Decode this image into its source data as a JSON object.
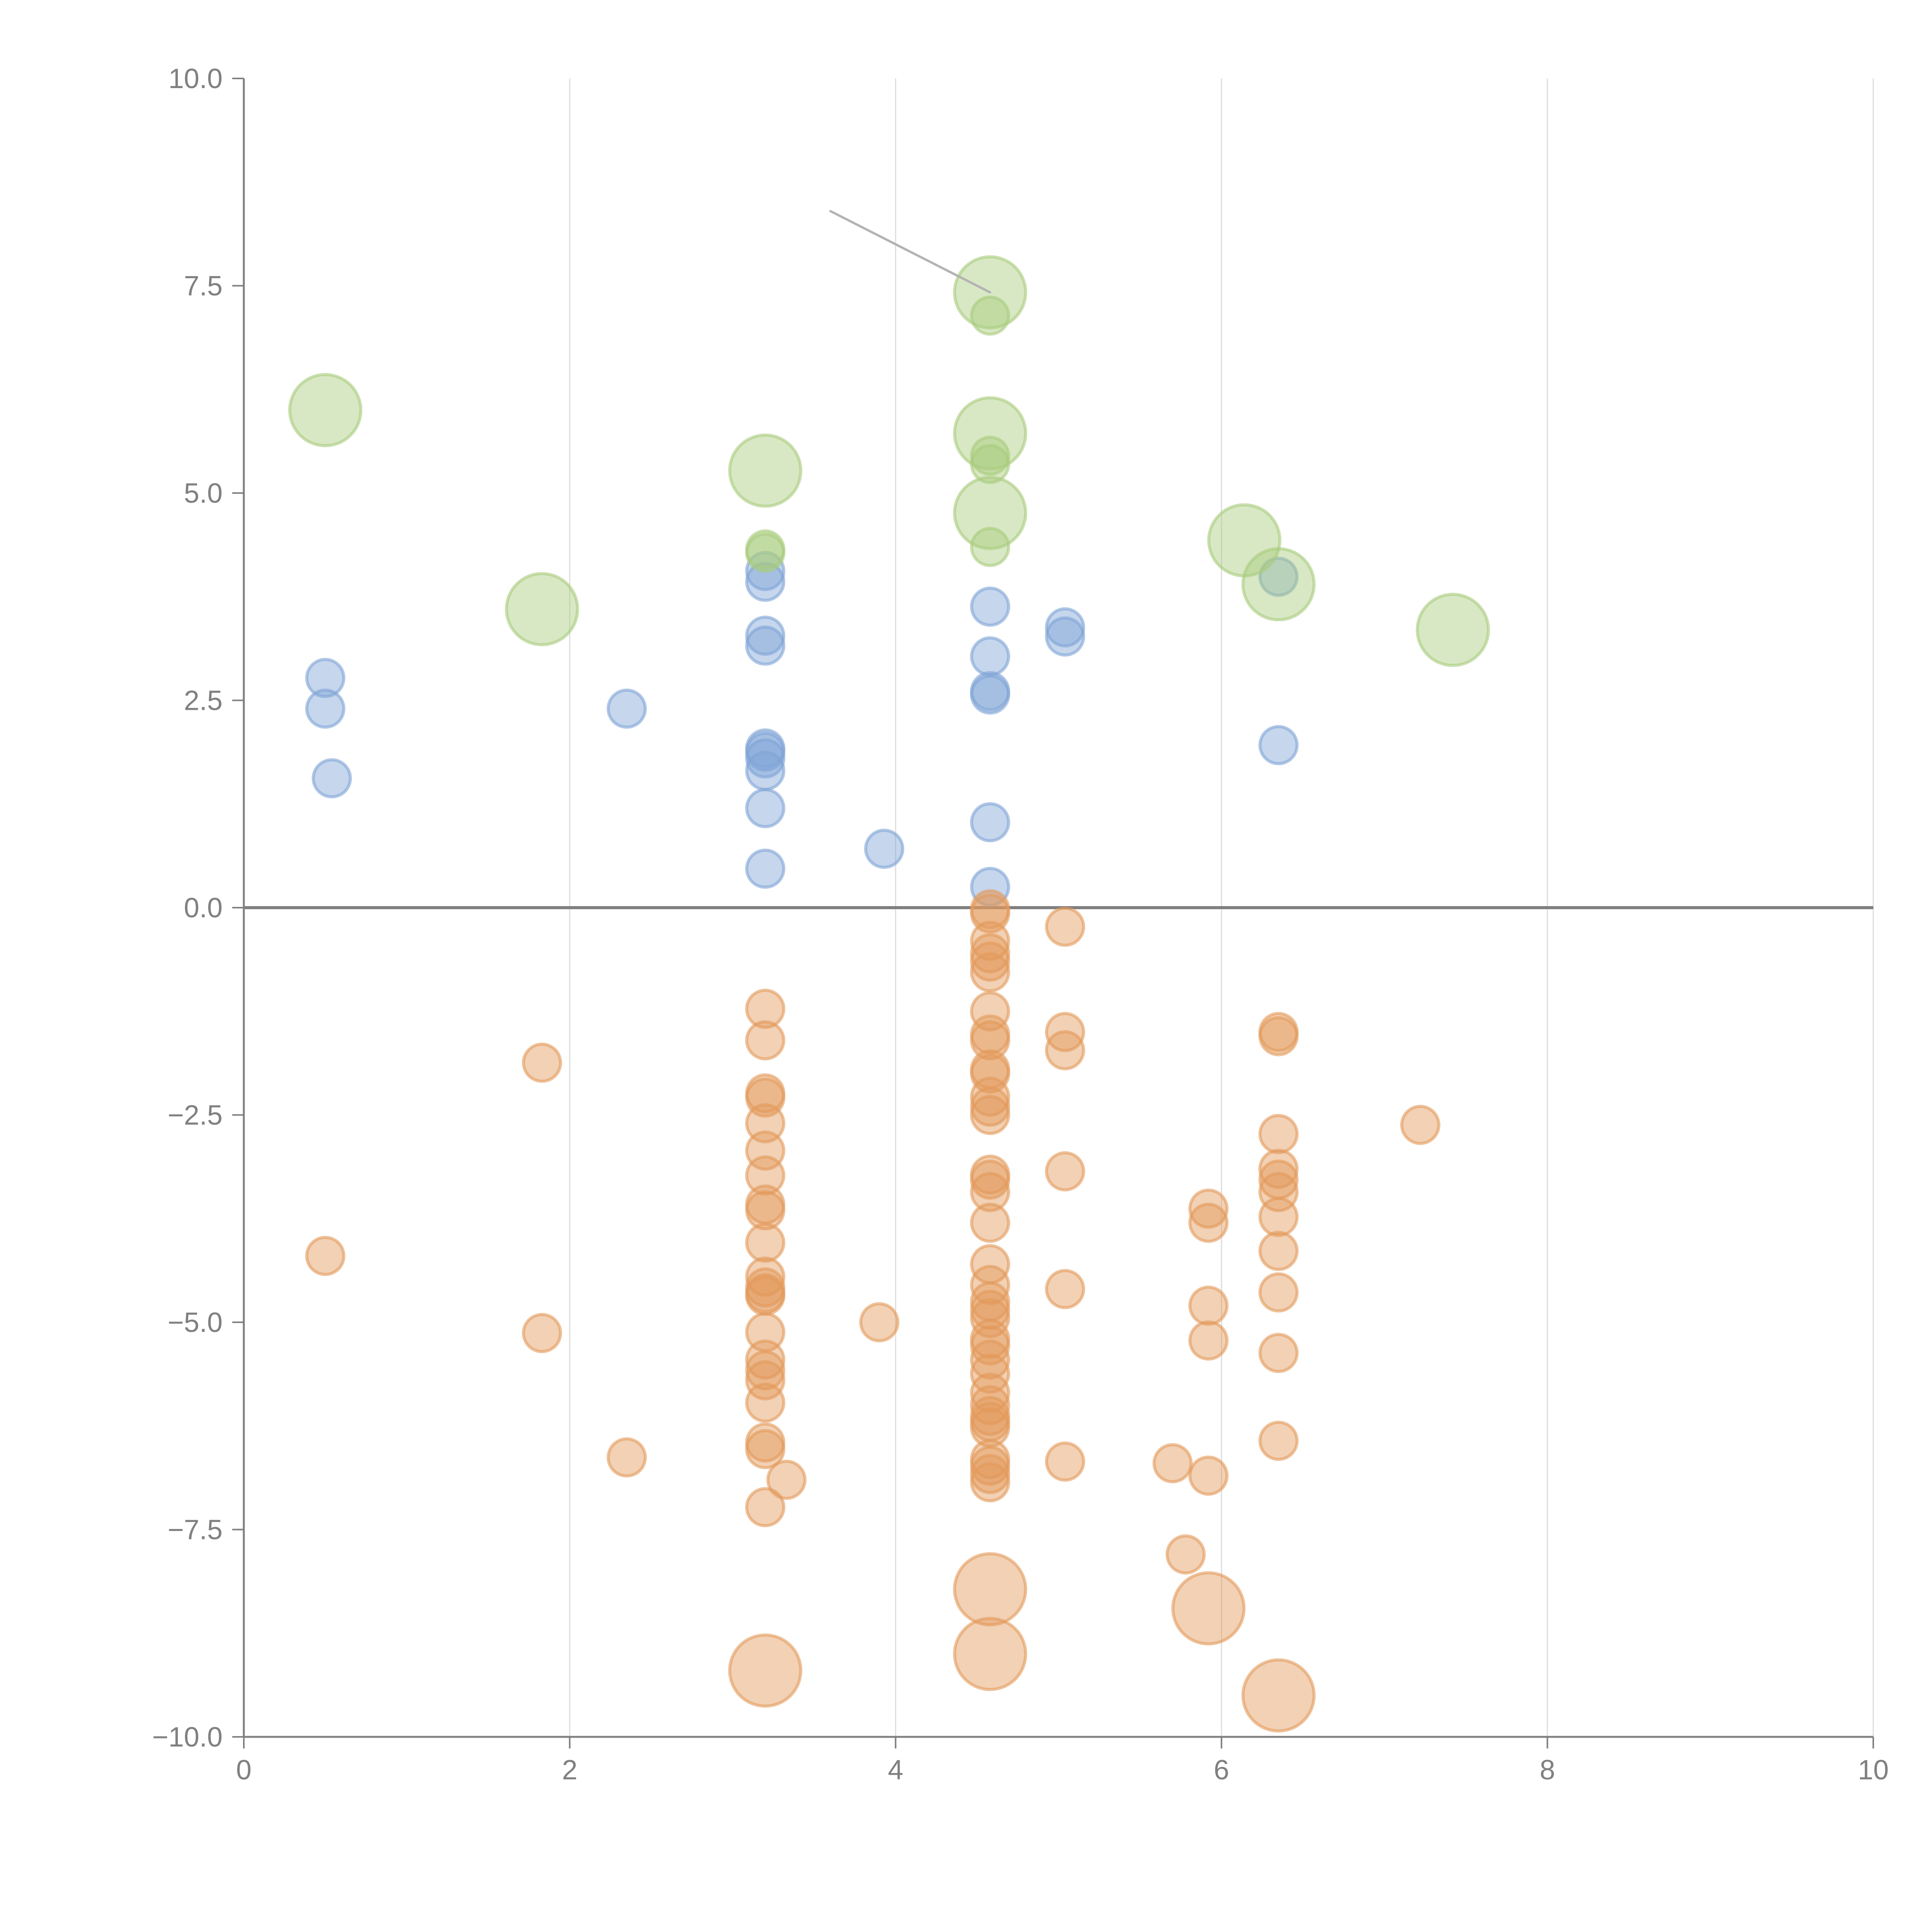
{
  "chart_data": {
    "type": "scatter",
    "title": "",
    "xlabel": "",
    "ylabel": "",
    "xlim": [
      0,
      10
    ],
    "ylim": [
      -10,
      10
    ],
    "x_ticks": [
      "0",
      "2",
      "4",
      "6",
      "8",
      "10"
    ],
    "y_ticks": [
      "10.0",
      "7.5",
      "5.0",
      "2.5",
      "0.0",
      "−2.5",
      "−5.0",
      "−7.5",
      "−10.0"
    ],
    "x_grid": true,
    "zero_line": true,
    "legend": "none",
    "colors": {
      "blue": "#7fa3d6",
      "green": "#a9cc7d",
      "orange": "#e39a5a"
    },
    "series": [
      {
        "name": "blue",
        "size": "small",
        "points": [
          [
            0.5,
            2.77
          ],
          [
            0.5,
            2.4
          ],
          [
            0.54,
            1.56
          ],
          [
            2.35,
            2.4
          ],
          [
            3.2,
            4.06
          ],
          [
            3.2,
            3.93
          ],
          [
            3.2,
            3.28
          ],
          [
            3.2,
            3.16
          ],
          [
            3.2,
            1.92
          ],
          [
            3.2,
            1.88
          ],
          [
            3.2,
            1.8
          ],
          [
            3.2,
            1.65
          ],
          [
            3.2,
            1.2
          ],
          [
            3.2,
            0.47
          ],
          [
            3.93,
            0.71
          ],
          [
            4.58,
            3.63
          ],
          [
            4.58,
            3.03
          ],
          [
            4.58,
            2.61
          ],
          [
            4.58,
            2.57
          ],
          [
            4.58,
            1.03
          ],
          [
            4.58,
            0.25
          ],
          [
            5.04,
            3.38
          ],
          [
            5.04,
            3.27
          ],
          [
            6.35,
            3.99
          ],
          [
            6.35,
            1.96
          ]
        ]
      },
      {
        "name": "green",
        "size": "mixed",
        "points": [
          [
            0.5,
            6.0,
            "large"
          ],
          [
            1.83,
            3.6,
            "large"
          ],
          [
            3.2,
            5.27,
            "large"
          ],
          [
            3.2,
            4.32,
            "small"
          ],
          [
            3.2,
            4.28,
            "small"
          ],
          [
            4.58,
            7.42,
            "large"
          ],
          [
            4.58,
            7.14,
            "small"
          ],
          [
            4.58,
            5.72,
            "large"
          ],
          [
            4.58,
            5.45,
            "small"
          ],
          [
            4.58,
            5.35,
            "small"
          ],
          [
            4.58,
            4.76,
            "large"
          ],
          [
            4.58,
            4.35,
            "small"
          ],
          [
            6.14,
            4.43,
            "large"
          ],
          [
            6.35,
            3.9,
            "large"
          ],
          [
            7.42,
            3.35,
            "large"
          ]
        ]
      },
      {
        "name": "orange",
        "size": "mixed",
        "points": [
          [
            0.5,
            -4.2,
            "small"
          ],
          [
            1.83,
            -1.87,
            "small"
          ],
          [
            1.83,
            -5.13,
            "small"
          ],
          [
            2.35,
            -6.63,
            "small"
          ],
          [
            3.2,
            -1.22,
            "small"
          ],
          [
            3.2,
            -1.6,
            "small"
          ],
          [
            3.2,
            -2.24,
            "small"
          ],
          [
            3.2,
            -2.29,
            "small"
          ],
          [
            3.2,
            -2.6,
            "small"
          ],
          [
            3.2,
            -2.93,
            "small"
          ],
          [
            3.2,
            -3.23,
            "small"
          ],
          [
            3.2,
            -3.58,
            "small"
          ],
          [
            3.2,
            -3.65,
            "small"
          ],
          [
            3.2,
            -4.04,
            "small"
          ],
          [
            3.2,
            -4.45,
            "small"
          ],
          [
            3.2,
            -4.58,
            "small"
          ],
          [
            3.2,
            -4.65,
            "small"
          ],
          [
            3.2,
            -4.68,
            "small"
          ],
          [
            3.2,
            -5.12,
            "small"
          ],
          [
            3.2,
            -5.45,
            "small"
          ],
          [
            3.2,
            -5.58,
            "small"
          ],
          [
            3.2,
            -5.7,
            "small"
          ],
          [
            3.2,
            -5.97,
            "small"
          ],
          [
            3.2,
            -6.45,
            "small"
          ],
          [
            3.2,
            -6.53,
            "small"
          ],
          [
            3.33,
            -6.9,
            "small"
          ],
          [
            3.2,
            -7.23,
            "small"
          ],
          [
            3.2,
            -9.2,
            "large"
          ],
          [
            3.9,
            -5.0,
            "small"
          ],
          [
            4.58,
            -0.02,
            "small"
          ],
          [
            4.58,
            -0.07,
            "small"
          ],
          [
            4.58,
            -0.4,
            "small"
          ],
          [
            4.58,
            -0.55,
            "small"
          ],
          [
            4.58,
            -0.65,
            "small"
          ],
          [
            4.58,
            -0.78,
            "small"
          ],
          [
            4.58,
            -1.25,
            "small"
          ],
          [
            4.58,
            -1.53,
            "small"
          ],
          [
            4.58,
            -1.6,
            "small"
          ],
          [
            4.58,
            -1.95,
            "small"
          ],
          [
            4.58,
            -2.0,
            "small"
          ],
          [
            4.58,
            -2.28,
            "small"
          ],
          [
            4.58,
            -2.4,
            "small"
          ],
          [
            4.58,
            -2.5,
            "small"
          ],
          [
            4.58,
            -3.22,
            "small"
          ],
          [
            4.58,
            -3.28,
            "small"
          ],
          [
            4.58,
            -3.43,
            "small"
          ],
          [
            4.58,
            -3.8,
            "small"
          ],
          [
            4.58,
            -4.3,
            "small"
          ],
          [
            4.58,
            -4.55,
            "small"
          ],
          [
            4.58,
            -4.75,
            "small"
          ],
          [
            4.58,
            -4.85,
            "small"
          ],
          [
            4.58,
            -4.95,
            "small"
          ],
          [
            4.58,
            -5.2,
            "small"
          ],
          [
            4.58,
            -5.28,
            "small"
          ],
          [
            4.58,
            -5.45,
            "small"
          ],
          [
            4.58,
            -5.62,
            "small"
          ],
          [
            4.58,
            -5.85,
            "small"
          ],
          [
            4.58,
            -6.0,
            "small"
          ],
          [
            4.58,
            -6.13,
            "small"
          ],
          [
            4.58,
            -6.2,
            "small"
          ],
          [
            4.58,
            -6.27,
            "small"
          ],
          [
            4.58,
            -6.65,
            "small"
          ],
          [
            4.58,
            -6.73,
            "small"
          ],
          [
            4.58,
            -6.83,
            "small"
          ],
          [
            4.58,
            -6.93,
            "small"
          ],
          [
            4.58,
            -8.22,
            "large"
          ],
          [
            4.58,
            -9.0,
            "large"
          ],
          [
            5.04,
            -0.23,
            "small"
          ],
          [
            5.04,
            -1.5,
            "small"
          ],
          [
            5.04,
            -1.72,
            "small"
          ],
          [
            5.04,
            -3.18,
            "small"
          ],
          [
            5.04,
            -4.6,
            "small"
          ],
          [
            5.04,
            -6.68,
            "small"
          ],
          [
            5.7,
            -6.7,
            "small"
          ],
          [
            5.78,
            -7.8,
            "small"
          ],
          [
            5.92,
            -3.63,
            "small"
          ],
          [
            5.92,
            -3.8,
            "small"
          ],
          [
            5.92,
            -4.8,
            "small"
          ],
          [
            5.92,
            -5.22,
            "small"
          ],
          [
            5.92,
            -6.85,
            "small"
          ],
          [
            5.92,
            -8.45,
            "large"
          ],
          [
            6.35,
            -1.5,
            "small"
          ],
          [
            6.35,
            -1.55,
            "small"
          ],
          [
            6.35,
            -2.73,
            "small"
          ],
          [
            6.35,
            -3.15,
            "small"
          ],
          [
            6.35,
            -3.28,
            "small"
          ],
          [
            6.35,
            -3.43,
            "small"
          ],
          [
            6.35,
            -3.73,
            "small"
          ],
          [
            6.35,
            -4.14,
            "small"
          ],
          [
            6.35,
            -4.64,
            "small"
          ],
          [
            6.35,
            -5.37,
            "small"
          ],
          [
            6.35,
            -6.43,
            "small"
          ],
          [
            6.35,
            -9.5,
            "large"
          ],
          [
            7.22,
            -2.62,
            "small"
          ]
        ]
      }
    ],
    "annotations": [
      {
        "type": "leader-line",
        "from": [
          3.6,
          8.4
        ],
        "to": [
          4.58,
          7.42
        ],
        "color": "#b3b3b3"
      }
    ]
  }
}
